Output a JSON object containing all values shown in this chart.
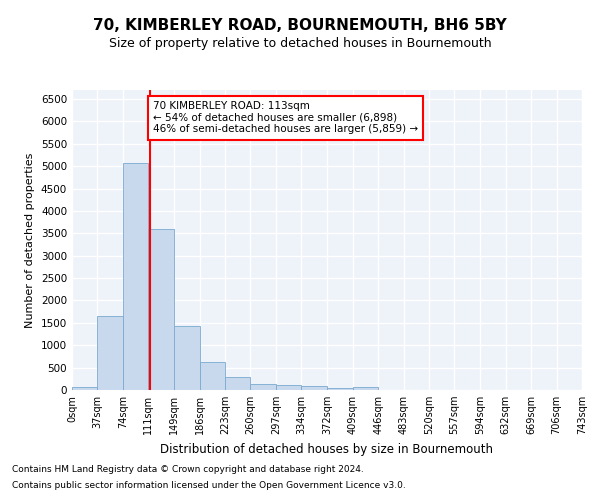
{
  "title": "70, KIMBERLEY ROAD, BOURNEMOUTH, BH6 5BY",
  "subtitle": "Size of property relative to detached houses in Bournemouth",
  "xlabel": "Distribution of detached houses by size in Bournemouth",
  "ylabel": "Number of detached properties",
  "bar_color": "#c9d9ed",
  "bar_edge_color": "#7aaad0",
  "background_color": "#eef2f9",
  "grid_color": "#ffffff",
  "property_line_x": 113,
  "property_line_color": "red",
  "annotation_text": "70 KIMBERLEY ROAD: 113sqm\n← 54% of detached houses are smaller (6,898)\n46% of semi-detached houses are larger (5,859) →",
  "annotation_box_color": "white",
  "annotation_box_edge": "red",
  "footer_line1": "Contains HM Land Registry data © Crown copyright and database right 2024.",
  "footer_line2": "Contains public sector information licensed under the Open Government Licence v3.0.",
  "bin_edges": [
    0,
    37,
    74,
    111,
    149,
    186,
    223,
    260,
    297,
    334,
    372,
    409,
    446,
    483,
    520,
    557,
    594,
    632,
    669,
    706,
    743
  ],
  "bin_labels": [
    "0sqm",
    "37sqm",
    "74sqm",
    "111sqm",
    "149sqm",
    "186sqm",
    "223sqm",
    "260sqm",
    "297sqm",
    "334sqm",
    "372sqm",
    "409sqm",
    "446sqm",
    "483sqm",
    "520sqm",
    "557sqm",
    "594sqm",
    "632sqm",
    "669sqm",
    "706sqm",
    "743sqm"
  ],
  "bar_heights": [
    75,
    1650,
    5060,
    3590,
    1420,
    620,
    290,
    145,
    110,
    85,
    55,
    60,
    10,
    5,
    5,
    2,
    2,
    1,
    1,
    1
  ],
  "ylim": [
    0,
    6700
  ],
  "yticks": [
    0,
    500,
    1000,
    1500,
    2000,
    2500,
    3000,
    3500,
    4000,
    4500,
    5000,
    5500,
    6000,
    6500
  ]
}
